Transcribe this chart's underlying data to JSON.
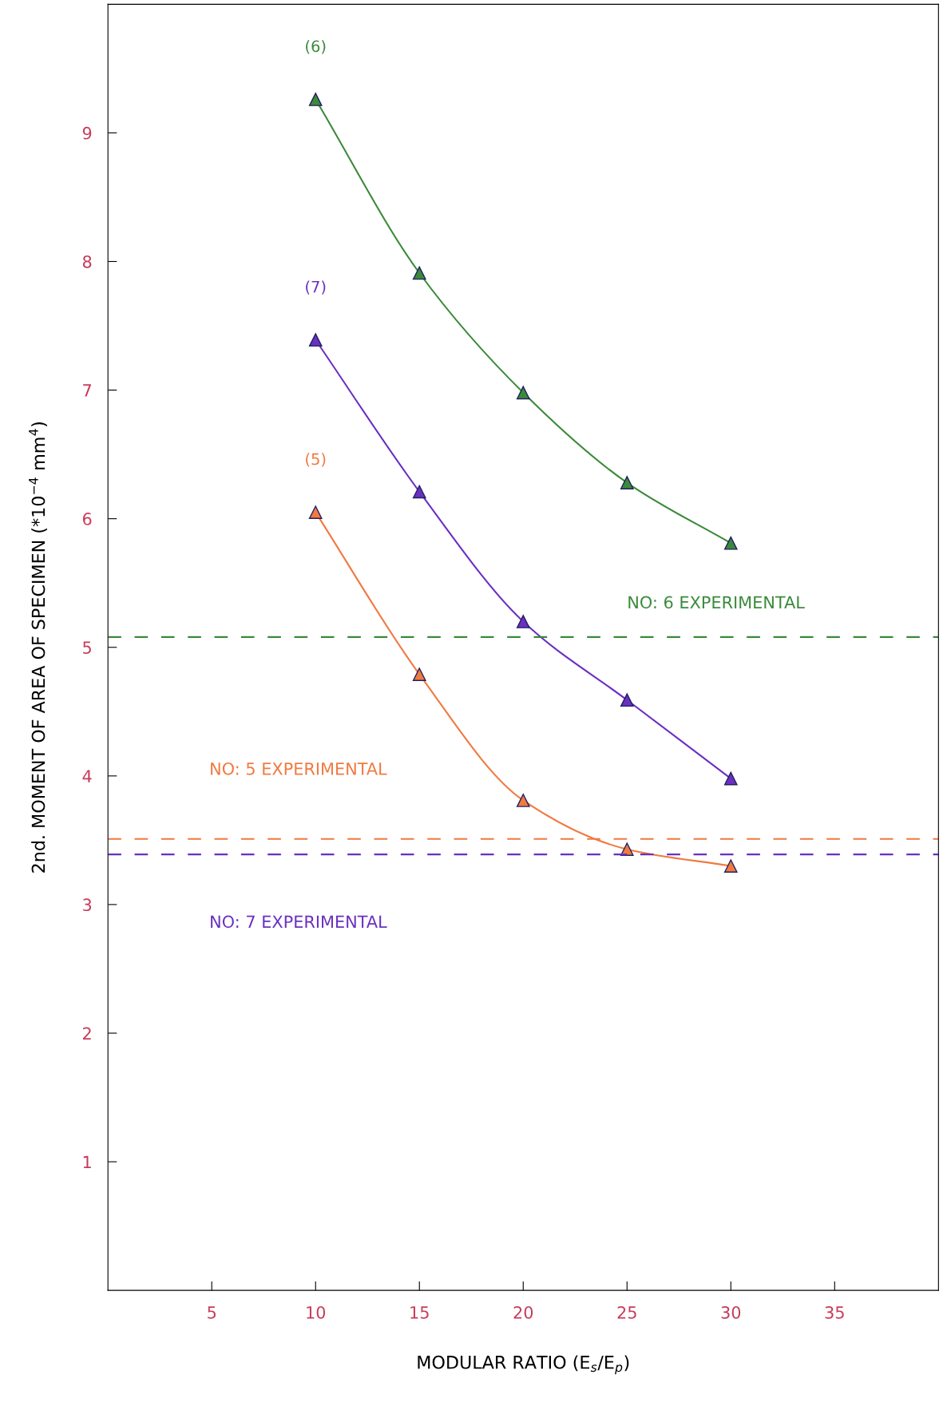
{
  "chart_data": {
    "type": "line",
    "xlabel": "MODULAR RATIO (E$_{s}$/E$_{p}$)",
    "ylabel": "2nd. MOMENT OF AREA OF SPECIMEN (*10$^{−4}$ mm$^{4}$)",
    "x": [
      10,
      15,
      20,
      25,
      30
    ],
    "series": [
      {
        "name": "(6)",
        "color": "#3a8a3a",
        "values": [
          9.26,
          7.91,
          6.98,
          6.28,
          5.81
        ]
      },
      {
        "name": "(7)",
        "color": "#6a30c0",
        "values": [
          7.39,
          6.21,
          5.2,
          4.59,
          3.98
        ]
      },
      {
        "name": "(5)",
        "color": "#f07a40",
        "values": [
          6.05,
          4.79,
          3.81,
          3.43,
          3.3
        ]
      }
    ],
    "ref_lines": [
      {
        "axis": "y",
        "value": 5.08,
        "color": "#3a8a3a",
        "line_style": "dashed"
      },
      {
        "axis": "y",
        "value": 3.51,
        "color": "#f07a40",
        "line_style": "dashed"
      },
      {
        "axis": "y",
        "value": 3.39,
        "color": "#6a30c0",
        "line_style": "dashed"
      }
    ],
    "annotations": [
      "NO: 6 EXPERIMENTAL",
      "NO: 5 EXPERIMENTAL",
      "NO: 7 EXPERIMENTAL"
    ],
    "xlim": [
      0,
      40
    ],
    "xticks": [
      5,
      10,
      15,
      20,
      25,
      30,
      35
    ],
    "ylim": [
      0,
      10
    ],
    "yticks": [
      1,
      2,
      3,
      4,
      5,
      6,
      7,
      8,
      9
    ],
    "marker": "triangle",
    "line_style": "solid",
    "grid": false,
    "legend": false
  }
}
